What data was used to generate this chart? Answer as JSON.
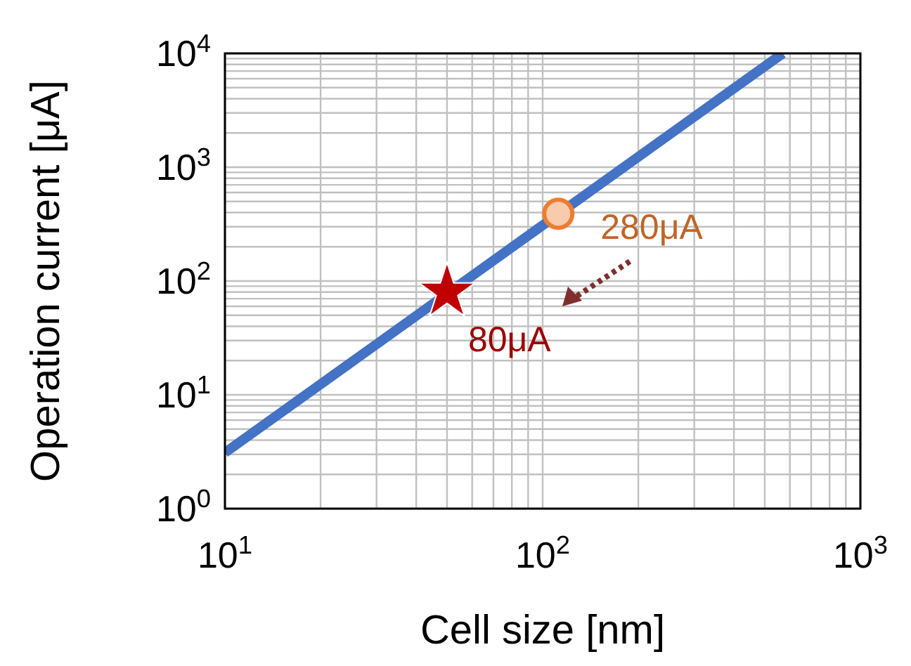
{
  "chart_data": {
    "type": "line",
    "xlabel": "Cell size [nm]",
    "ylabel": "Operation current [μA]",
    "log": "xy",
    "grid": true,
    "xlim": [
      10,
      1000
    ],
    "ylim": [
      1,
      10000
    ],
    "xticks": [
      {
        "value": 10,
        "label": "10$^{1}$"
      },
      {
        "value": 20,
        "label": null
      },
      {
        "value": 30,
        "label": null
      },
      {
        "value": 40,
        "label": null
      },
      {
        "value": 50,
        "label": null
      },
      {
        "value": 60,
        "label": null
      },
      {
        "value": 70,
        "label": null
      },
      {
        "value": 80,
        "label": null
      },
      {
        "value": 90,
        "label": null
      },
      {
        "value": 100,
        "label": "10$^{2}$"
      },
      {
        "value": 200,
        "label": null
      },
      {
        "value": 300,
        "label": null
      },
      {
        "value": 400,
        "label": null
      },
      {
        "value": 500,
        "label": null
      },
      {
        "value": 600,
        "label": null
      },
      {
        "value": 700,
        "label": null
      },
      {
        "value": 800,
        "label": null
      },
      {
        "value": 900,
        "label": null
      },
      {
        "value": 1000,
        "label": "10$^{3}$"
      }
    ],
    "yticks": [
      {
        "value": 1,
        "label": "10$^{0}$"
      },
      {
        "value": 2,
        "label": null
      },
      {
        "value": 3,
        "label": null
      },
      {
        "value": 4,
        "label": null
      },
      {
        "value": 5,
        "label": null
      },
      {
        "value": 6,
        "label": null
      },
      {
        "value": 7,
        "label": null
      },
      {
        "value": 8,
        "label": null
      },
      {
        "value": 9,
        "label": null
      },
      {
        "value": 10,
        "label": "10$^{1}$"
      },
      {
        "value": 20,
        "label": null
      },
      {
        "value": 30,
        "label": null
      },
      {
        "value": 40,
        "label": null
      },
      {
        "value": 50,
        "label": null
      },
      {
        "value": 60,
        "label": null
      },
      {
        "value": 70,
        "label": null
      },
      {
        "value": 80,
        "label": null
      },
      {
        "value": 90,
        "label": null
      },
      {
        "value": 100,
        "label": "10$^{2}$"
      },
      {
        "value": 200,
        "label": null
      },
      {
        "value": 300,
        "label": null
      },
      {
        "value": 400,
        "label": null
      },
      {
        "value": 500,
        "label": null
      },
      {
        "value": 600,
        "label": null
      },
      {
        "value": 700,
        "label": null
      },
      {
        "value": 800,
        "label": null
      },
      {
        "value": 900,
        "label": null
      },
      {
        "value": 1000,
        "label": "10$^{3}$"
      },
      {
        "value": 2000,
        "label": null
      },
      {
        "value": 3000,
        "label": null
      },
      {
        "value": 4000,
        "label": null
      },
      {
        "value": 5000,
        "label": null
      },
      {
        "value": 6000,
        "label": null
      },
      {
        "value": 7000,
        "label": null
      },
      {
        "value": 8000,
        "label": null
      },
      {
        "value": 9000,
        "label": null
      },
      {
        "value": 10000,
        "label": "10$^{4}$"
      }
    ],
    "series": [
      {
        "color": "#4472c4",
        "x": [
          10,
          570
        ],
        "values": [
          3.1,
          10000
        ],
        "marker": "none"
      },
      {
        "type": "scatter",
        "color": "#ed7d31",
        "x": [
          112
        ],
        "values": [
          390
        ],
        "marker": "circle"
      },
      {
        "type": "scatter",
        "color": "#c00000",
        "x": [
          50
        ],
        "values": [
          80
        ],
        "marker": "star"
      }
    ],
    "annotations": [
      "280μA",
      "80μA"
    ]
  }
}
